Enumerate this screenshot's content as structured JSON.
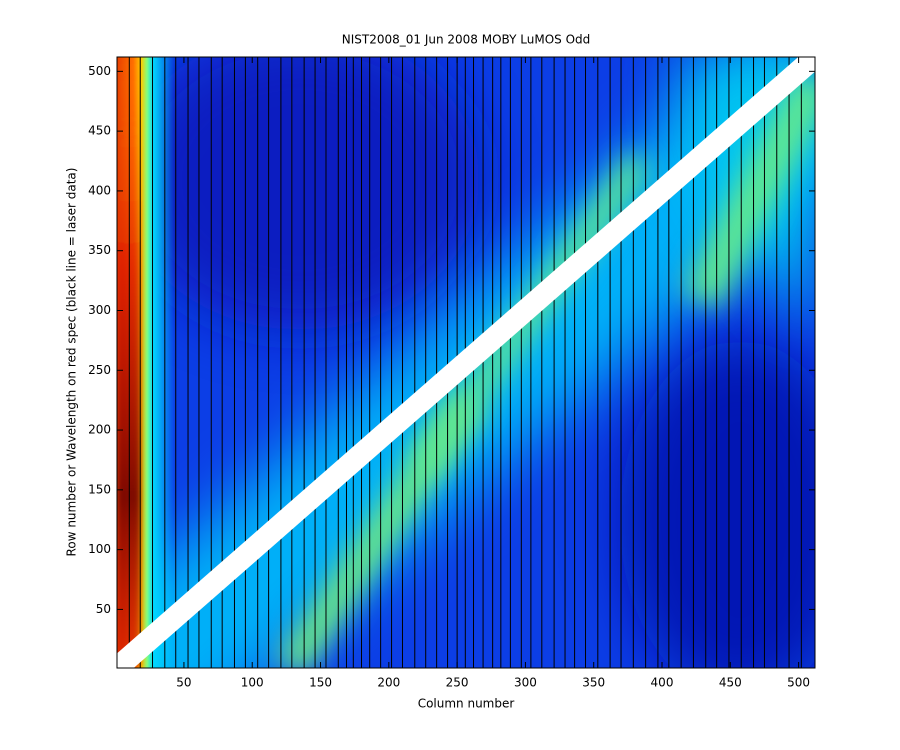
{
  "chart_data": {
    "type": "heatmap",
    "title": "NIST2008_01 Jun 2008 MOBY LuMOS Odd",
    "x_label": "Column number",
    "y_label": "Row number or Wavelength on red spec (black line = laser data)",
    "xlim": [
      1,
      512
    ],
    "ylim": [
      1,
      512
    ],
    "xticks": [
      50,
      100,
      150,
      200,
      250,
      300,
      350,
      400,
      450,
      500
    ],
    "yticks": [
      50,
      100,
      150,
      200,
      250,
      300,
      350,
      400,
      450,
      500
    ],
    "laser_columns": [
      10,
      18,
      27,
      36,
      44,
      53,
      61,
      70,
      78,
      87,
      95,
      104,
      112,
      121,
      129,
      138,
      146,
      154,
      163,
      169,
      174,
      180,
      186,
      194,
      202,
      210,
      219,
      227,
      235,
      243,
      250,
      256,
      262,
      269,
      276,
      282,
      289,
      297,
      304,
      312,
      321,
      329,
      336,
      344,
      353,
      362,
      370,
      379,
      388,
      397,
      405,
      414,
      423,
      432,
      440,
      449,
      458,
      467,
      475,
      484,
      493,
      502
    ],
    "laser_color": "#000000",
    "series": [
      {
        "color": "#ffffff",
        "x": [
          1,
          512
        ],
        "values": [
          1,
          512
        ]
      }
    ]
  }
}
